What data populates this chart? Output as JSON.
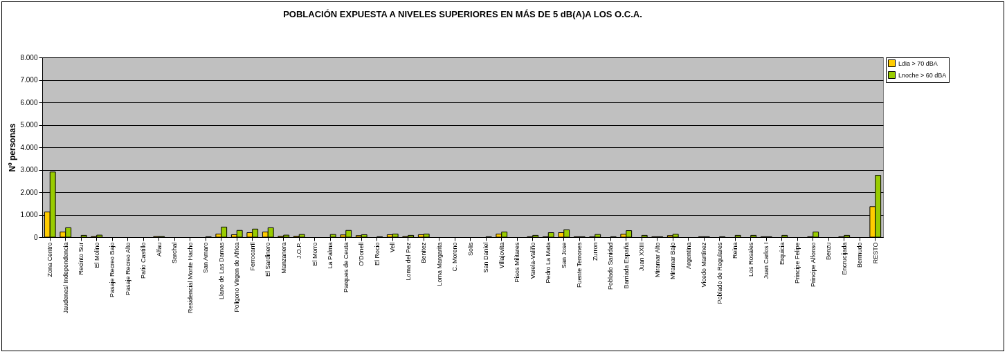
{
  "chart_data": {
    "type": "bar",
    "title": "POBLACIÓN EXPUESTA A NIVELES SUPERIORES EN MÁS DE 5 dB(A)A LOS O.C.A.",
    "ylabel": "Nº personas",
    "categories": [
      "Zona Centro",
      "Jaudenes/ Independencia",
      "Recinto Sur",
      "El Molino",
      "Pasaje Recreo Bajo",
      "Pasaje Recreo Alto",
      "Patio Castillo",
      "Alfau",
      "Sarchal",
      "Residencial Monte Hacho",
      "San Amaro",
      "Llano de Las Damas",
      "Poligono Virgen de Africa",
      "Ferrocarril",
      "El Sardinero",
      "Manzanera",
      "J.O.P.",
      "El Morro",
      "La Palma",
      "Parques de Ceuta",
      "O'Donell",
      "El Rocio",
      "Vell",
      "Loma del Pez",
      "Benitez",
      "Loma Margarita",
      "C. Moreno",
      "Solis",
      "San Daniel",
      "Villajovita",
      "Pisos Militares",
      "Varela-Valiño",
      "Pedro La Mata",
      "San Jose",
      "Fuente Terrones",
      "Zurron",
      "Poblado Sanidad",
      "Barriada España",
      "Juan XXIII",
      "Miramar Alto",
      "Miramar Bajo",
      "Argentina",
      "Vicedo Martínez",
      "Poblado de Regulares",
      "Reina",
      "Los Rosales",
      "Juan Carlos I",
      "Erquicia",
      "Principe Felipe",
      "Principe Alfonso",
      "Benzu",
      "Encrucijada",
      "Bermudo",
      "RESTO"
    ],
    "series": [
      {
        "name": "Ldia > 70 dBA",
        "color": "#ffcc00",
        "values": [
          1120,
          230,
          0,
          30,
          0,
          0,
          0,
          30,
          0,
          0,
          0,
          140,
          110,
          200,
          230,
          40,
          40,
          0,
          0,
          100,
          70,
          0,
          110,
          30,
          110,
          0,
          0,
          0,
          0,
          140,
          0,
          20,
          20,
          200,
          20,
          20,
          0,
          130,
          0,
          20,
          70,
          0,
          20,
          0,
          0,
          0,
          20,
          0,
          0,
          20,
          0,
          20,
          0,
          1360
        ]
      },
      {
        "name": "Lnoche > 60 dBA",
        "color": "#99cc00",
        "values": [
          2900,
          420,
          80,
          90,
          0,
          0,
          0,
          30,
          0,
          0,
          20,
          450,
          300,
          360,
          420,
          90,
          120,
          0,
          120,
          300,
          110,
          20,
          140,
          80,
          140,
          0,
          0,
          0,
          20,
          230,
          0,
          80,
          200,
          330,
          20,
          120,
          20,
          290,
          80,
          20,
          130,
          0,
          20,
          20,
          80,
          80,
          20,
          80,
          0,
          230,
          0,
          80,
          0,
          2750
        ]
      }
    ],
    "ylim": [
      0,
      8000
    ],
    "yticks": [
      {
        "value": 0,
        "label": "0"
      },
      {
        "value": 1000,
        "label": "1.000"
      },
      {
        "value": 2000,
        "label": "2.000"
      },
      {
        "value": 3000,
        "label": "3.000"
      },
      {
        "value": 4000,
        "label": "4.000"
      },
      {
        "value": 5000,
        "label": "5.000"
      },
      {
        "value": 6000,
        "label": "6.000"
      },
      {
        "value": 7000,
        "label": "7.000"
      },
      {
        "value": 8000,
        "label": "8.000"
      }
    ],
    "grid": "y",
    "legend": "right"
  }
}
